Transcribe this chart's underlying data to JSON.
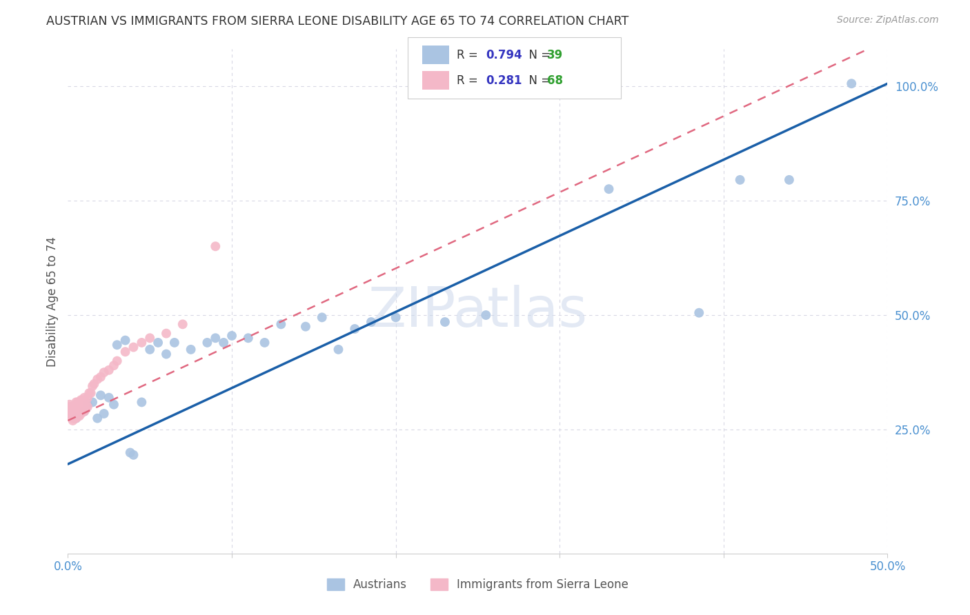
{
  "title": "AUSTRIAN VS IMMIGRANTS FROM SIERRA LEONE DISABILITY AGE 65 TO 74 CORRELATION CHART",
  "source": "Source: ZipAtlas.com",
  "ylabel": "Disability Age 65 to 74",
  "xlim": [
    0,
    0.5
  ],
  "ylim": [
    -0.02,
    1.08
  ],
  "xticks": [
    0.0,
    0.1,
    0.2,
    0.3,
    0.4,
    0.5
  ],
  "xtick_labels": [
    "0.0%",
    "",
    "",
    "",
    "",
    "50.0%"
  ],
  "yticks": [
    0.25,
    0.5,
    0.75,
    1.0
  ],
  "ytick_labels": [
    "25.0%",
    "50.0%",
    "75.0%",
    "100.0%"
  ],
  "blue_R": 0.794,
  "blue_N": 39,
  "pink_R": 0.281,
  "pink_N": 68,
  "blue_color": "#aac4e2",
  "blue_line_color": "#1a5fa8",
  "pink_color": "#f4b8c8",
  "pink_line_color": "#e06880",
  "background_color": "#ffffff",
  "grid_color": "#d8d8e4",
  "watermark": "ZIPatlas",
  "legend_R_color": "#3535c0",
  "legend_N_color": "#30a030",
  "blue_line_x0": 0.0,
  "blue_line_y0": 0.175,
  "blue_line_x1": 0.5,
  "blue_line_y1": 1.005,
  "pink_line_x0": 0.0,
  "pink_line_y0": 0.27,
  "pink_line_x1": 0.5,
  "pink_line_y1": 1.1,
  "austrians_x": [
    0.005,
    0.01,
    0.012,
    0.015,
    0.018,
    0.02,
    0.022,
    0.025,
    0.028,
    0.03,
    0.035,
    0.038,
    0.04,
    0.045,
    0.05,
    0.055,
    0.06,
    0.065,
    0.075,
    0.085,
    0.09,
    0.095,
    0.1,
    0.11,
    0.12,
    0.13,
    0.145,
    0.155,
    0.165,
    0.175,
    0.185,
    0.2,
    0.23,
    0.255,
    0.33,
    0.385,
    0.41,
    0.44,
    0.478
  ],
  "austrians_y": [
    0.275,
    0.29,
    0.305,
    0.31,
    0.275,
    0.325,
    0.285,
    0.32,
    0.305,
    0.435,
    0.445,
    0.2,
    0.195,
    0.31,
    0.425,
    0.44,
    0.415,
    0.44,
    0.425,
    0.44,
    0.45,
    0.44,
    0.455,
    0.45,
    0.44,
    0.48,
    0.475,
    0.495,
    0.425,
    0.47,
    0.485,
    0.495,
    0.485,
    0.5,
    0.775,
    0.505,
    0.795,
    0.795,
    1.005
  ],
  "sierra_x": [
    0.001,
    0.001,
    0.001,
    0.001,
    0.001,
    0.002,
    0.002,
    0.002,
    0.002,
    0.002,
    0.003,
    0.003,
    0.003,
    0.003,
    0.003,
    0.003,
    0.003,
    0.004,
    0.004,
    0.004,
    0.004,
    0.004,
    0.005,
    0.005,
    0.005,
    0.005,
    0.005,
    0.005,
    0.006,
    0.006,
    0.006,
    0.006,
    0.007,
    0.007,
    0.007,
    0.007,
    0.008,
    0.008,
    0.008,
    0.008,
    0.009,
    0.009,
    0.009,
    0.01,
    0.01,
    0.01,
    0.01,
    0.011,
    0.011,
    0.012,
    0.012,
    0.013,
    0.014,
    0.015,
    0.016,
    0.018,
    0.02,
    0.022,
    0.025,
    0.028,
    0.03,
    0.035,
    0.04,
    0.045,
    0.05,
    0.06,
    0.07,
    0.09
  ],
  "sierra_y": [
    0.285,
    0.29,
    0.295,
    0.3,
    0.305,
    0.28,
    0.285,
    0.29,
    0.295,
    0.3,
    0.27,
    0.275,
    0.28,
    0.285,
    0.29,
    0.295,
    0.3,
    0.275,
    0.28,
    0.285,
    0.29,
    0.3,
    0.275,
    0.28,
    0.285,
    0.29,
    0.3,
    0.31,
    0.28,
    0.285,
    0.295,
    0.31,
    0.28,
    0.285,
    0.295,
    0.31,
    0.285,
    0.29,
    0.3,
    0.315,
    0.29,
    0.295,
    0.31,
    0.29,
    0.295,
    0.305,
    0.32,
    0.295,
    0.31,
    0.3,
    0.32,
    0.33,
    0.33,
    0.345,
    0.35,
    0.36,
    0.365,
    0.375,
    0.38,
    0.39,
    0.4,
    0.42,
    0.43,
    0.44,
    0.45,
    0.46,
    0.48,
    0.65
  ]
}
